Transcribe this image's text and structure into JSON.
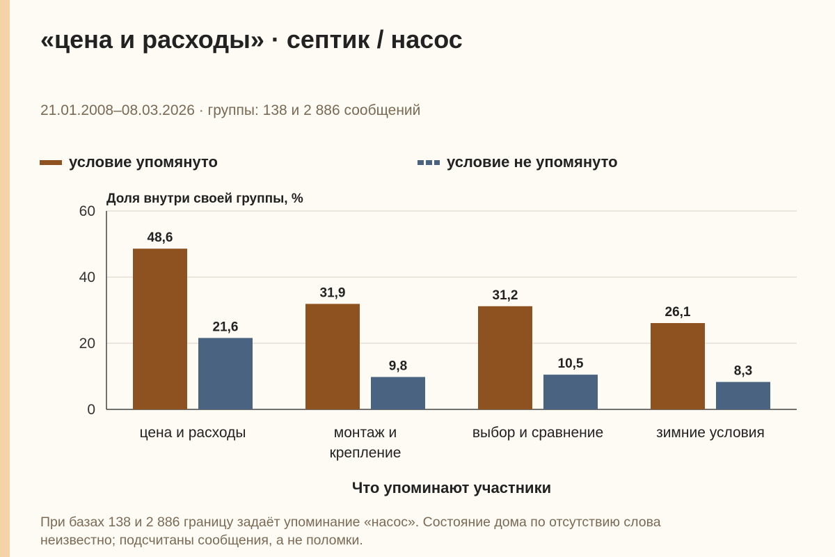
{
  "header": {
    "title": "«цена и расходы» · септик / насос",
    "subtitle": "21.01.2008–08.03.2026 · группы: 138 и 2 886 сообщений"
  },
  "colors": {
    "background": "#fdfbf3",
    "accent_strip": "#f5d3a6",
    "series_mentioned": "#8e5220",
    "series_not_mentioned": "#4a6380",
    "grid": "#d8d2c4",
    "muted_text": "#7a6a55"
  },
  "chart_data": {
    "type": "bar",
    "title": "«цена и расходы» · септик / насос",
    "subtitle": "21.01.2008–08.03.2026 · группы: 138 и 2 886 сообщений",
    "ylabel": "Доля внутри своей группы, %",
    "xlabel": "Что упоминают участники",
    "ylim": [
      0,
      60
    ],
    "yticks": [
      "0",
      "20",
      "40",
      "60"
    ],
    "grid": true,
    "legend_position": "top",
    "categories": [
      [
        "цена и расходы"
      ],
      [
        "монтаж и",
        "крепление"
      ],
      [
        "выбор и сравнение"
      ],
      [
        "зимние условия"
      ]
    ],
    "series": [
      {
        "name": "условие упомянуто",
        "color": "#8e5220",
        "values": [
          48.6,
          31.9,
          31.2,
          26.1
        ],
        "labels": [
          "48,6",
          "31,9",
          "31,2",
          "26,1"
        ]
      },
      {
        "name": "условие не упомянуто",
        "color": "#4a6380",
        "values": [
          21.6,
          9.8,
          10.5,
          8.3
        ],
        "labels": [
          "21,6",
          "9,8",
          "10,5",
          "8,3"
        ]
      }
    ]
  },
  "footnote": "При базах 138 и 2 886 границу задаёт упоминание «насос». Состояние дома по отсутствию слова неизвестно; подсчитаны сообщения, а не поломки."
}
